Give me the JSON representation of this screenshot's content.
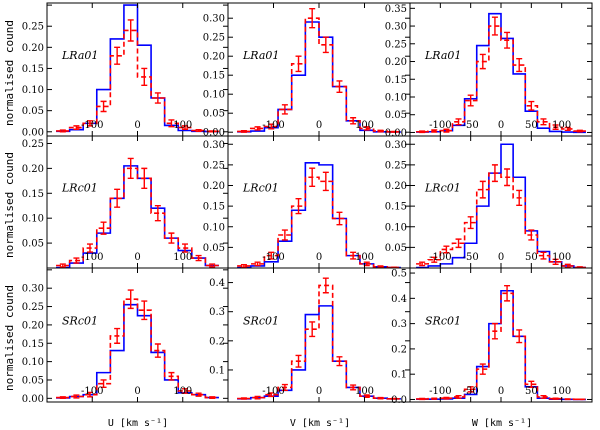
{
  "chart_data": {
    "type": "step-histogram-grid",
    "colors": {
      "model": "#0000ff",
      "data": "#ff0000",
      "black": "#000000"
    },
    "y_axis_label": "normalised cound",
    "x_axis_labels": [
      "U [km s⁻¹]",
      "V [km s⁻¹]",
      "W [km s⁻¹]"
    ],
    "columns": [
      {
        "component": "U",
        "edges": [
          -180,
          -150,
          -120,
          -90,
          -60,
          -30,
          0,
          30,
          60,
          90,
          120,
          150,
          180
        ],
        "xlim": [
          -200,
          200
        ],
        "xticks": [
          -100,
          0,
          100
        ]
      },
      {
        "component": "V",
        "edges": [
          -180,
          -150,
          -120,
          -90,
          -60,
          -30,
          0,
          30,
          60,
          90,
          120,
          150,
          180
        ],
        "xlim": [
          -200,
          200
        ],
        "xticks": [
          -100,
          0,
          100
        ]
      },
      {
        "component": "W",
        "edges": [
          -140,
          -120,
          -100,
          -80,
          -60,
          -40,
          -20,
          0,
          20,
          40,
          60,
          80,
          100,
          120,
          140
        ],
        "xlim": [
          -150,
          150
        ],
        "xticks": [
          -100,
          -50,
          0,
          50,
          100
        ]
      }
    ],
    "rows": [
      {
        "field": "LRa01",
        "panels": [
          {
            "ylim": [
              -0.01,
              0.305
            ],
            "yticks": [
              0.0,
              0.05,
              0.1,
              0.15,
              0.2,
              0.25,
              0.3
            ],
            "yfmt": 2,
            "model": [
              0.001,
              0.005,
              0.02,
              0.1,
              0.22,
              0.3,
              0.205,
              0.08,
              0.015,
              0.003,
              0.001,
              0.0005
            ],
            "data": [
              0.002,
              0.01,
              0.02,
              0.06,
              0.18,
              0.24,
              0.13,
              0.08,
              0.02,
              0.01,
              0.003,
              0.001
            ],
            "err": [
              0.002,
              0.004,
              0.006,
              0.012,
              0.02,
              0.025,
              0.02,
              0.012,
              0.008,
              0.004,
              0.002,
              0.001
            ]
          },
          {
            "ylim": [
              -0.01,
              0.34
            ],
            "yticks": [
              0.0,
              0.05,
              0.1,
              0.15,
              0.2,
              0.25,
              0.3
            ],
            "yfmt": 2,
            "model": [
              0.001,
              0.003,
              0.012,
              0.06,
              0.15,
              0.29,
              0.25,
              0.12,
              0.03,
              0.005,
              0.001,
              0.0005
            ],
            "data": [
              0.002,
              0.01,
              0.015,
              0.06,
              0.18,
              0.3,
              0.23,
              0.12,
              0.03,
              0.01,
              0.003,
              0.001
            ],
            "err": [
              0.002,
              0.004,
              0.006,
              0.012,
              0.02,
              0.025,
              0.02,
              0.015,
              0.008,
              0.004,
              0.002,
              0.001
            ]
          },
          {
            "ylim": [
              -0.01,
              0.365
            ],
            "yticks": [
              0.0,
              0.05,
              0.1,
              0.15,
              0.2,
              0.25,
              0.3,
              0.35
            ],
            "yfmt": 2,
            "model": [
              0.001,
              0.002,
              0.005,
              0.02,
              0.095,
              0.245,
              0.335,
              0.265,
              0.165,
              0.06,
              0.012,
              0.003,
              0.001,
              0.0005
            ],
            "data": [
              0.002,
              0.004,
              0.005,
              0.03,
              0.09,
              0.2,
              0.3,
              0.26,
              0.19,
              0.075,
              0.03,
              0.015,
              0.01,
              0.004
            ],
            "err": [
              0.002,
              0.003,
              0.004,
              0.008,
              0.015,
              0.02,
              0.025,
              0.022,
              0.018,
              0.012,
              0.008,
              0.006,
              0.004,
              0.002
            ]
          }
        ]
      },
      {
        "field": "LRc01",
        "panels": [
          {
            "ylim": [
              0.0,
              0.265
            ],
            "yticks": [
              0.05,
              0.1,
              0.15,
              0.2,
              0.25
            ],
            "yfmt": 2,
            "model": [
              0.001,
              0.01,
              0.03,
              0.07,
              0.14,
              0.205,
              0.18,
              0.12,
              0.06,
              0.035,
              0.02,
              0.005
            ],
            "data": [
              0.005,
              0.015,
              0.04,
              0.08,
              0.14,
              0.2,
              0.18,
              0.11,
              0.06,
              0.04,
              0.02,
              0.005
            ],
            "err": [
              0.003,
              0.005,
              0.008,
              0.012,
              0.018,
              0.02,
              0.02,
              0.015,
              0.01,
              0.008,
              0.005,
              0.003
            ]
          },
          {
            "ylim": [
              0.0,
              0.32
            ],
            "yticks": [
              0.05,
              0.1,
              0.15,
              0.2,
              0.25,
              0.3
            ],
            "yfmt": 2,
            "model": [
              0.001,
              0.005,
              0.015,
              0.065,
              0.14,
              0.255,
              0.25,
              0.12,
              0.03,
              0.01,
              0.003,
              0.001
            ],
            "data": [
              0.005,
              0.01,
              0.03,
              0.08,
              0.15,
              0.22,
              0.21,
              0.12,
              0.03,
              0.01,
              0.003,
              0.001
            ],
            "err": [
              0.003,
              0.004,
              0.008,
              0.012,
              0.018,
              0.022,
              0.022,
              0.015,
              0.008,
              0.004,
              0.002,
              0.001
            ]
          },
          {
            "ylim": [
              0.0,
              0.32
            ],
            "yticks": [
              0.05,
              0.1,
              0.15,
              0.2,
              0.25,
              0.3
            ],
            "yfmt": 2,
            "model": [
              0.001,
              0.005,
              0.01,
              0.025,
              0.06,
              0.15,
              0.23,
              0.3,
              0.22,
              0.09,
              0.04,
              0.015,
              0.005,
              0.001
            ],
            "data": [
              0.01,
              0.02,
              0.045,
              0.06,
              0.11,
              0.19,
              0.23,
              0.22,
              0.17,
              0.08,
              0.03,
              0.015,
              0.005,
              0.001
            ],
            "err": [
              0.004,
              0.006,
              0.008,
              0.01,
              0.014,
              0.02,
              0.02,
              0.02,
              0.018,
              0.012,
              0.008,
              0.006,
              0.004,
              0.002
            ]
          }
        ]
      },
      {
        "field": "SRc01",
        "panels": [
          {
            "ylim": [
              -0.01,
              0.355
            ],
            "yticks": [
              0.0,
              0.05,
              0.1,
              0.15,
              0.2,
              0.25,
              0.3,
              0.35
            ],
            "yfmt": 2,
            "model": [
              0.001,
              0.005,
              0.01,
              0.07,
              0.13,
              0.255,
              0.225,
              0.125,
              0.05,
              0.015,
              0.01,
              0.002
            ],
            "data": [
              0.002,
              0.005,
              0.01,
              0.04,
              0.17,
              0.27,
              0.24,
              0.13,
              0.06,
              0.02,
              0.01,
              0.002
            ],
            "err": [
              0.002,
              0.004,
              0.006,
              0.01,
              0.02,
              0.025,
              0.025,
              0.018,
              0.01,
              0.006,
              0.004,
              0.002
            ]
          },
          {
            "ylim": [
              -0.01,
              0.45
            ],
            "yticks": [
              0.1,
              0.2,
              0.3,
              0.4
            ],
            "yfmt": 1,
            "model": [
              0.001,
              0.005,
              0.01,
              0.03,
              0.1,
              0.29,
              0.32,
              0.13,
              0.04,
              0.01,
              0.003,
              0.001
            ],
            "data": [
              0.002,
              0.005,
              0.015,
              0.04,
              0.13,
              0.24,
              0.39,
              0.13,
              0.04,
              0.01,
              0.003,
              0.001
            ],
            "err": [
              0.002,
              0.004,
              0.006,
              0.01,
              0.02,
              0.025,
              0.025,
              0.015,
              0.008,
              0.004,
              0.002,
              0.001
            ]
          },
          {
            "ylim": [
              -0.01,
              0.52
            ],
            "yticks": [
              0.0,
              0.1,
              0.2,
              0.3,
              0.4,
              0.5
            ],
            "yfmt": 1,
            "model": [
              0.001,
              0.001,
              0.002,
              0.005,
              0.02,
              0.13,
              0.3,
              0.43,
              0.25,
              0.05,
              0.005,
              0.001,
              0.0005,
              0.0002
            ],
            "data": [
              0.002,
              0.003,
              0.005,
              0.01,
              0.04,
              0.12,
              0.27,
              0.42,
              0.25,
              0.06,
              0.01,
              0.003,
              0.001,
              0.0005
            ],
            "err": [
              0.002,
              0.002,
              0.003,
              0.005,
              0.01,
              0.02,
              0.03,
              0.03,
              0.025,
              0.012,
              0.005,
              0.002,
              0.001,
              0.0005
            ]
          }
        ]
      }
    ]
  }
}
